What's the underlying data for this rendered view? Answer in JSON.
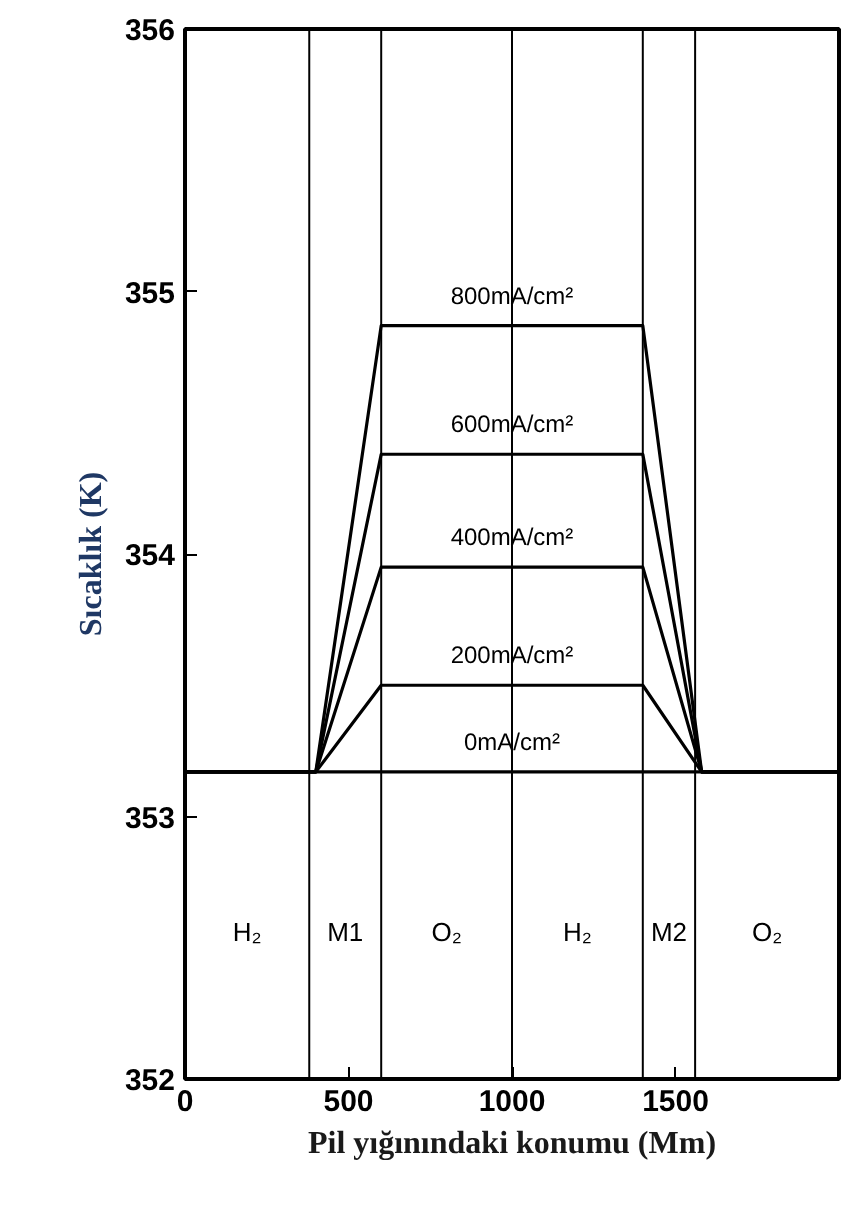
{
  "chart_data": {
    "type": "line",
    "xlabel": "Pil yığınındaki konumu (Mm)",
    "ylabel": "Sıcaklık (K)",
    "xlim": [
      0,
      2000
    ],
    "ylim": [
      352,
      356
    ],
    "xticks": [
      0,
      500,
      1000,
      1500
    ],
    "yticks": [
      352,
      353,
      354,
      355,
      356
    ],
    "grid": false,
    "legend": false,
    "marker": "none",
    "line_style": "solid",
    "series": [
      {
        "name": "800mA/cm²",
        "color": "#000000",
        "x": [
          0,
          400,
          600,
          1400,
          1580,
          2000
        ],
        "values": [
          353.17,
          353.17,
          354.87,
          354.87,
          353.17,
          353.17
        ]
      },
      {
        "name": "600mA/cm²",
        "color": "#000000",
        "x": [
          0,
          400,
          600,
          1400,
          1580,
          2000
        ],
        "values": [
          353.17,
          353.17,
          354.38,
          354.38,
          353.17,
          353.17
        ]
      },
      {
        "name": "400mA/cm²",
        "color": "#000000",
        "x": [
          0,
          400,
          600,
          1400,
          1580,
          2000
        ],
        "values": [
          353.17,
          353.17,
          353.95,
          353.95,
          353.17,
          353.17
        ]
      },
      {
        "name": "200mA/cm²",
        "color": "#000000",
        "x": [
          0,
          400,
          600,
          1400,
          1580,
          2000
        ],
        "values": [
          353.17,
          353.17,
          353.5,
          353.5,
          353.17,
          353.17
        ]
      },
      {
        "name": "0mA/cm²",
        "color": "#000000",
        "x": [
          0,
          2000
        ],
        "values": [
          353.17,
          353.17
        ]
      }
    ],
    "ref_lines": [
      {
        "axis": "x",
        "value": 380,
        "color": "#000000"
      },
      {
        "axis": "x",
        "value": 600,
        "color": "#000000"
      },
      {
        "axis": "x",
        "value": 1000,
        "color": "#000000"
      },
      {
        "axis": "x",
        "value": 1400,
        "color": "#000000"
      },
      {
        "axis": "x",
        "value": 1560,
        "color": "#000000"
      }
    ],
    "annotations": [
      "H₂",
      "M1",
      "O₂",
      "H₂",
      "M2",
      "O₂"
    ]
  }
}
